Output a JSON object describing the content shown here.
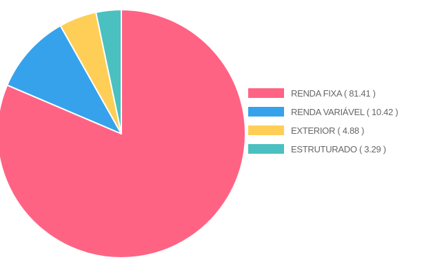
{
  "chart_data": {
    "type": "pie",
    "title": "",
    "legend_position": "right",
    "slices": [
      {
        "label": "RENDA FIXA ( 81.41 )",
        "category": "RENDA FIXA",
        "value": 81.41,
        "color": "#ff6384"
      },
      {
        "label": "RENDA VARIÁVEL ( 10.42 )",
        "category": "RENDA VARIÁVEL",
        "value": 10.42,
        "color": "#36a2eb"
      },
      {
        "label": "EXTERIOR ( 4.88 )",
        "category": "EXTERIOR",
        "value": 4.88,
        "color": "#ffce56"
      },
      {
        "label": "ESTRUTURADO ( 3.29 )",
        "category": "ESTRUTURADO",
        "value": 3.29,
        "color": "#4bc0c0"
      }
    ]
  }
}
